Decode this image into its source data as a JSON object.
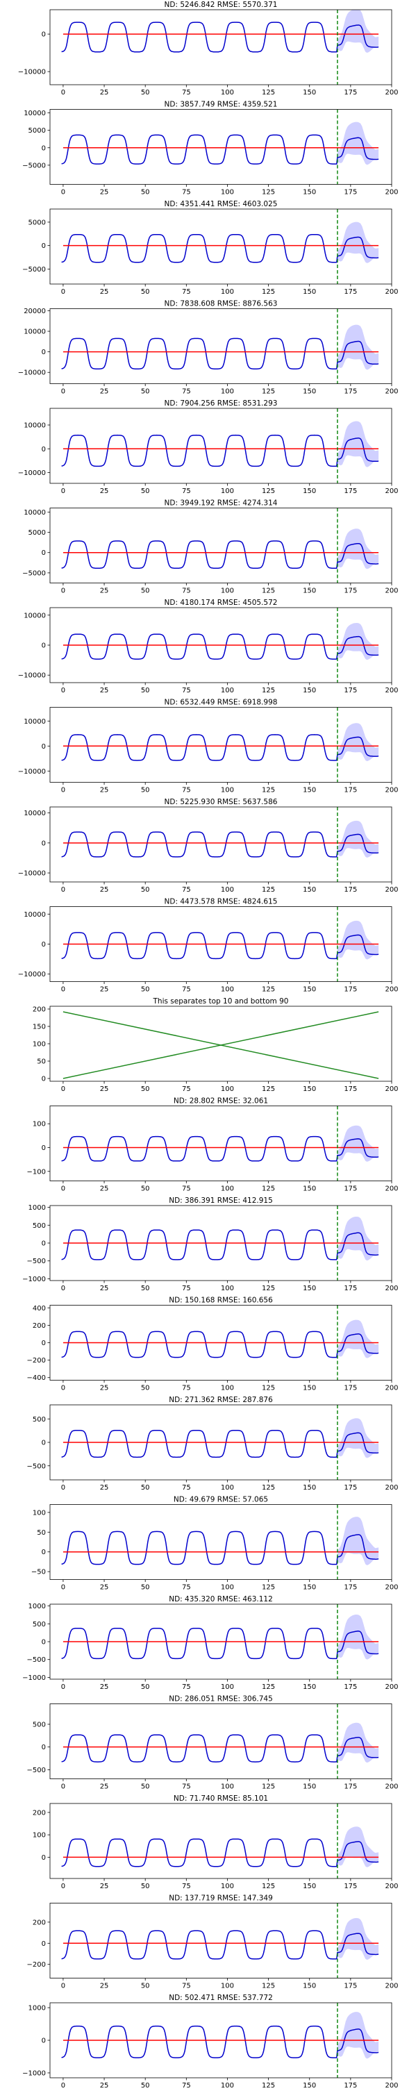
{
  "colors": {
    "series": "#0000cc",
    "band": "#c8c8ff",
    "truth": "#ff0000",
    "forecast_start": "#008000",
    "separator": "#228b22",
    "axis": "#000000"
  },
  "chart_data": [
    {
      "type": "line",
      "title": "ND:  5246.842 RMSE:  5570.371",
      "xlim": [
        -8,
        200
      ],
      "ylim": [
        -13500,
        6500
      ],
      "xticks": [
        0,
        25,
        50,
        75,
        100,
        125,
        150,
        175,
        200
      ],
      "yticks": [
        -10000,
        0
      ],
      "amplitude": 4000,
      "offset": -800,
      "forecast_start": 167,
      "series": [
        {
          "values_description": ""
        }
      ]
    },
    {
      "type": "line",
      "title": "ND:  3857.749 RMSE:  4359.521",
      "xlim": [
        -8,
        200
      ],
      "ylim": [
        -10500,
        11000
      ],
      "xticks": [
        0,
        25,
        50,
        75,
        100,
        125,
        150,
        175,
        200
      ],
      "yticks": [
        -5000,
        0,
        5000,
        10000
      ],
      "amplitude": 4200,
      "offset": -500,
      "forecast_start": 167
    },
    {
      "type": "line",
      "title": "ND:  4351.441 RMSE:  4603.025",
      "xlim": [
        -8,
        200
      ],
      "ylim": [
        -8200,
        7800
      ],
      "xticks": [
        0,
        25,
        50,
        75,
        100,
        125,
        150,
        175,
        200
      ],
      "yticks": [
        -5000,
        0,
        5000
      ],
      "amplitude": 3000,
      "offset": -600,
      "forecast_start": 167
    },
    {
      "type": "line",
      "title": "ND:  7838.608 RMSE:  8876.563",
      "xlim": [
        -8,
        200
      ],
      "ylim": [
        -15500,
        21000
      ],
      "xticks": [
        0,
        25,
        50,
        75,
        100,
        125,
        150,
        175,
        200
      ],
      "yticks": [
        -10000,
        0,
        10000,
        20000
      ],
      "amplitude": 7500,
      "offset": -900,
      "forecast_start": 167
    },
    {
      "type": "line",
      "title": "ND:  7904.256 RMSE:  8531.293",
      "xlim": [
        -8,
        200
      ],
      "ylim": [
        -14500,
        17000
      ],
      "xticks": [
        0,
        25,
        50,
        75,
        100,
        125,
        150,
        175,
        200
      ],
      "yticks": [
        -10000,
        0,
        10000
      ],
      "amplitude": 6600,
      "offset": -800,
      "forecast_start": 167
    },
    {
      "type": "line",
      "title": "ND:  3949.192 RMSE:  4274.314",
      "xlim": [
        -8,
        200
      ],
      "ylim": [
        -7500,
        11000
      ],
      "xticks": [
        0,
        25,
        50,
        75,
        100,
        125,
        150,
        175,
        200
      ],
      "yticks": [
        -5000,
        0,
        5000,
        10000
      ],
      "amplitude": 3400,
      "offset": -500,
      "forecast_start": 167
    },
    {
      "type": "line",
      "title": "ND:  4180.174 RMSE:  4505.572",
      "xlim": [
        -8,
        200
      ],
      "ylim": [
        -12500,
        12500
      ],
      "xticks": [
        0,
        25,
        50,
        75,
        100,
        125,
        150,
        175,
        200
      ],
      "yticks": [
        -10000,
        0,
        10000
      ],
      "amplitude": 4200,
      "offset": -500,
      "forecast_start": 167
    },
    {
      "type": "line",
      "title": "ND:  6532.449 RMSE:  6918.998",
      "xlim": [
        -8,
        200
      ],
      "ylim": [
        -14500,
        15500
      ],
      "xticks": [
        0,
        25,
        50,
        75,
        100,
        125,
        150,
        175,
        200
      ],
      "yticks": [
        -10000,
        0,
        10000
      ],
      "amplitude": 5200,
      "offset": -600,
      "forecast_start": 167
    },
    {
      "type": "line",
      "title": "ND:  5225.930 RMSE:  5637.586",
      "xlim": [
        -8,
        200
      ],
      "ylim": [
        -13000,
        12000
      ],
      "xticks": [
        0,
        25,
        50,
        75,
        100,
        125,
        150,
        175,
        200
      ],
      "yticks": [
        -10000,
        0,
        10000
      ],
      "amplitude": 4200,
      "offset": -500,
      "forecast_start": 167
    },
    {
      "type": "line",
      "title": "ND:  4473.578 RMSE:  4824.615",
      "xlim": [
        -8,
        200
      ],
      "ylim": [
        -12500,
        12500
      ],
      "xticks": [
        0,
        25,
        50,
        75,
        100,
        125,
        150,
        175,
        200
      ],
      "yticks": [
        -10000,
        0,
        10000
      ],
      "amplitude": 4400,
      "offset": -500,
      "forecast_start": 167
    },
    {
      "type": "line",
      "title": "This separates top 10 and bottom 90",
      "xlim": [
        -8,
        200
      ],
      "ylim": [
        -8,
        208
      ],
      "xticks": [
        0,
        25,
        50,
        75,
        100,
        125,
        150,
        175,
        200
      ],
      "yticks": [
        0,
        50,
        100,
        150,
        200
      ],
      "separator": true
    },
    {
      "type": "line",
      "title": "ND:  28.802 RMSE:  32.061",
      "xlim": [
        -8,
        200
      ],
      "ylim": [
        -140,
        175
      ],
      "xticks": [
        0,
        25,
        50,
        75,
        100,
        125,
        150,
        175,
        200
      ],
      "yticks": [
        -100,
        0,
        100
      ],
      "amplitude": 52,
      "offset": -5,
      "forecast_start": 167
    },
    {
      "type": "line",
      "title": "ND:  386.391 RMSE:  412.915",
      "xlim": [
        -8,
        200
      ],
      "ylim": [
        -1050,
        1050
      ],
      "xticks": [
        0,
        25,
        50,
        75,
        100,
        125,
        150,
        175,
        200
      ],
      "yticks": [
        -1000,
        -500,
        0,
        500,
        1000
      ],
      "amplitude": 420,
      "offset": -50,
      "forecast_start": 167
    },
    {
      "type": "line",
      "title": "ND:  150.168 RMSE:  160.656",
      "xlim": [
        -8,
        200
      ],
      "ylim": [
        -430,
        430
      ],
      "xticks": [
        0,
        25,
        50,
        75,
        100,
        125,
        150,
        175,
        200
      ],
      "yticks": [
        -400,
        -200,
        0,
        200,
        400
      ],
      "amplitude": 150,
      "offset": -20,
      "forecast_start": 167
    },
    {
      "type": "line",
      "title": "ND:  271.362 RMSE:  287.876",
      "xlim": [
        -8,
        200
      ],
      "ylim": [
        -800,
        800
      ],
      "xticks": [
        0,
        25,
        50,
        75,
        100,
        125,
        150,
        175,
        200
      ],
      "yticks": [
        -500,
        0,
        500
      ],
      "amplitude": 290,
      "offset": -30,
      "forecast_start": 167
    },
    {
      "type": "line",
      "title": "ND:  49.679 RMSE:  57.065",
      "xlim": [
        -8,
        200
      ],
      "ylim": [
        -70,
        120
      ],
      "xticks": [
        0,
        25,
        50,
        75,
        100,
        125,
        150,
        175,
        200
      ],
      "yticks": [
        -50,
        0,
        50,
        100
      ],
      "amplitude": 42,
      "offset": 10,
      "forecast_start": 167
    },
    {
      "type": "line",
      "title": "ND:  435.320 RMSE:  463.112",
      "xlim": [
        -8,
        200
      ],
      "ylim": [
        -1050,
        1050
      ],
      "xticks": [
        0,
        25,
        50,
        75,
        100,
        125,
        150,
        175,
        200
      ],
      "yticks": [
        -1000,
        -500,
        0,
        500,
        1000
      ],
      "amplitude": 430,
      "offset": -50,
      "forecast_start": 167
    },
    {
      "type": "line",
      "title": "ND:  286.051 RMSE:  306.745",
      "xlim": [
        -8,
        200
      ],
      "ylim": [
        -700,
        950
      ],
      "xticks": [
        0,
        25,
        50,
        75,
        100,
        125,
        150,
        175,
        200
      ],
      "yticks": [
        -500,
        0,
        500
      ],
      "amplitude": 300,
      "offset": -30,
      "forecast_start": 167
    },
    {
      "type": "line",
      "title": "ND:  71.740 RMSE:  85.101",
      "xlim": [
        -8,
        200
      ],
      "ylim": [
        -95,
        240
      ],
      "xticks": [
        0,
        25,
        50,
        75,
        100,
        125,
        150,
        175,
        200
      ],
      "yticks": [
        0,
        100,
        200
      ],
      "amplitude": 62,
      "offset": 20,
      "forecast_start": 167
    },
    {
      "type": "line",
      "title": "ND:  137.719 RMSE:  147.349",
      "xlim": [
        -8,
        200
      ],
      "ylim": [
        -330,
        380
      ],
      "xticks": [
        0,
        25,
        50,
        75,
        100,
        125,
        150,
        175,
        200
      ],
      "yticks": [
        -200,
        0,
        200
      ],
      "amplitude": 135,
      "offset": -15,
      "forecast_start": 167
    },
    {
      "type": "line",
      "title": "ND:  502.471 RMSE:  537.772",
      "xlim": [
        -8,
        200
      ],
      "ylim": [
        -1150,
        1150
      ],
      "xticks": [
        0,
        25,
        50,
        75,
        100,
        125,
        150,
        175,
        200
      ],
      "yticks": [
        -1000,
        0,
        1000
      ],
      "amplitude": 490,
      "offset": -50,
      "forecast_start": 167
    }
  ]
}
